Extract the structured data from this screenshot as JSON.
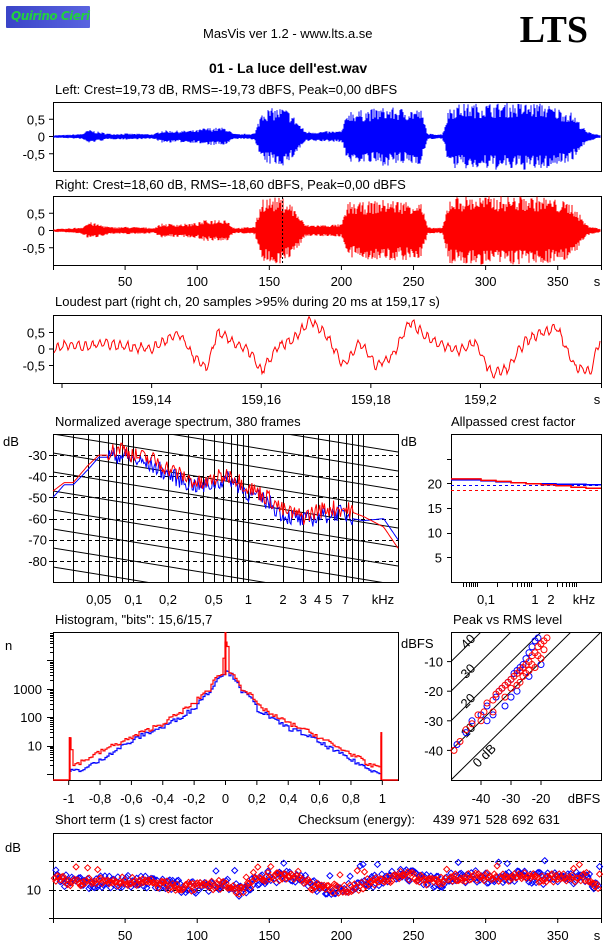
{
  "header": {
    "logo_text": "Quirino Cieri",
    "app_title": "MasVis ver 1.2 - www.lts.a.se",
    "brand": "LTS",
    "file_name": "01 - La luce dell'est.wav"
  },
  "colors": {
    "left": "#0000ff",
    "right": "#ff0000"
  },
  "chart_data": [
    {
      "id": "left-waveform",
      "type": "line",
      "title": "Left: Crest=19,73 dB, RMS=-19,73 dBFS, Peak=0,00 dBFS",
      "ylim": [
        -1,
        1
      ],
      "yticks": [
        "0,5",
        "0",
        "-0,5"
      ],
      "ytick_values": [
        0.5,
        0,
        -0.5
      ],
      "xlim": [
        0,
        380
      ],
      "envelope": {
        "t": [
          0,
          10,
          20,
          25,
          30,
          40,
          50,
          60,
          70,
          75,
          90,
          100,
          105,
          120,
          125,
          130,
          140,
          145,
          160,
          165,
          175,
          180,
          200,
          205,
          210,
          230,
          255,
          260,
          270,
          275,
          280,
          300,
          320,
          340,
          360,
          370,
          380
        ],
        "amp": [
          0.04,
          0.05,
          0.08,
          0.2,
          0.15,
          0.08,
          0.09,
          0.08,
          0.07,
          0.18,
          0.17,
          0.19,
          0.25,
          0.26,
          0.08,
          0.07,
          0.1,
          0.8,
          0.85,
          0.7,
          0.15,
          0.14,
          0.16,
          0.8,
          0.75,
          0.85,
          0.8,
          0.08,
          0.07,
          0.9,
          0.95,
          0.97,
          0.98,
          0.97,
          0.7,
          0.15,
          0.04
        ]
      },
      "color": "#0000ff"
    },
    {
      "id": "right-waveform",
      "type": "line",
      "title": "Right: Crest=18,60 dB, RMS=-18,60 dBFS, Peak=0,00 dBFS",
      "ylim": [
        -1,
        1
      ],
      "yticks": [
        "0,5",
        "0",
        "-0,5"
      ],
      "ytick_values": [
        0.5,
        0,
        -0.5
      ],
      "xlim": [
        0,
        380
      ],
      "xticks": [
        "50",
        "100",
        "150",
        "200",
        "250",
        "300",
        "350"
      ],
      "xtick_values": [
        50,
        100,
        150,
        200,
        250,
        300,
        350
      ],
      "xunit": "s",
      "marker_time": 159.17,
      "envelope": {
        "t": [
          0,
          10,
          20,
          25,
          30,
          40,
          50,
          60,
          70,
          75,
          90,
          100,
          105,
          120,
          125,
          130,
          140,
          145,
          160,
          165,
          175,
          180,
          200,
          205,
          210,
          230,
          255,
          260,
          270,
          275,
          280,
          300,
          320,
          340,
          360,
          370,
          380
        ],
        "amp": [
          0.04,
          0.06,
          0.1,
          0.25,
          0.2,
          0.1,
          0.11,
          0.1,
          0.08,
          0.2,
          0.19,
          0.22,
          0.3,
          0.35,
          0.09,
          0.08,
          0.12,
          0.98,
          0.95,
          0.8,
          0.17,
          0.16,
          0.18,
          0.85,
          0.8,
          0.9,
          0.85,
          0.09,
          0.08,
          0.98,
          1.0,
          1.0,
          1.0,
          0.99,
          0.8,
          0.17,
          0.04
        ]
      },
      "color": "#ff0000"
    },
    {
      "id": "loudest-part",
      "type": "line",
      "title": "Loudest part (right ch, 20 samples >95% during 20 ms at 159,17 s)",
      "xlim": [
        159.122,
        159.222
      ],
      "ylim": [
        -1,
        1
      ],
      "xticks": [
        "159,14",
        "159,16",
        "159,18",
        "159,2"
      ],
      "xtick_values": [
        159.14,
        159.16,
        159.18,
        159.2
      ],
      "xunit": "s",
      "yticks": [
        "0,5",
        "0",
        "-0,5"
      ],
      "ytick_values": [
        0.5,
        0,
        -0.5
      ],
      "x": [
        159.122,
        159.125,
        159.128,
        159.131,
        159.134,
        159.137,
        159.14,
        159.143,
        159.145,
        159.148,
        159.15,
        159.152,
        159.155,
        159.158,
        159.16,
        159.163,
        159.166,
        159.169,
        159.172,
        159.175,
        159.178,
        159.181,
        159.184,
        159.187,
        159.19,
        159.193,
        159.196,
        159.199,
        159.202,
        159.205,
        159.208,
        159.211,
        159.214,
        159.217,
        159.22,
        159.222
      ],
      "y": [
        0.0,
        0.15,
        0.05,
        0.2,
        0.1,
        0.05,
        0.0,
        0.3,
        0.45,
        -0.3,
        -0.6,
        0.5,
        0.2,
        -0.1,
        -0.7,
        0.05,
        0.3,
        0.9,
        0.4,
        -0.5,
        0.2,
        -0.5,
        -0.2,
        0.85,
        0.4,
        0.1,
        -0.05,
        0.2,
        -0.75,
        -0.6,
        0.2,
        0.5,
        0.65,
        -0.5,
        -0.7,
        0.4
      ],
      "color": "#ff0000"
    },
    {
      "id": "spectrum",
      "type": "line",
      "title": "Normalized average spectrum, 380 frames",
      "ylabel": "dB",
      "ylim": [
        -90,
        -20
      ],
      "yticks": [
        "-30",
        "-40",
        "-50",
        "-60",
        "-70",
        "-80"
      ],
      "ytick_values": [
        -30,
        -40,
        -50,
        -60,
        -70,
        -80
      ],
      "xscale": "log",
      "xlim_khz": [
        0.02,
        20
      ],
      "xticks": [
        "0,05",
        "0,1",
        "0,2",
        "0,5",
        "1",
        "2",
        "3",
        "4",
        "5",
        "7",
        "kHz"
      ],
      "xtick_values": [
        0.05,
        0.1,
        0.2,
        0.5,
        1,
        2,
        3,
        4,
        5,
        7
      ],
      "series": [
        {
          "name": "Left",
          "color": "#0000ff",
          "x": [
            0.02,
            0.025,
            0.03,
            0.04,
            0.05,
            0.06,
            0.08,
            0.1,
            0.15,
            0.2,
            0.3,
            0.4,
            0.5,
            0.7,
            1,
            1.5,
            2,
            3,
            4,
            5,
            6,
            8,
            10,
            15,
            20
          ],
          "y": [
            -50,
            -44,
            -44,
            -37,
            -31,
            -31,
            -31,
            -33,
            -36,
            -40,
            -44,
            -46,
            -44,
            -42,
            -49,
            -53,
            -59,
            -62,
            -60,
            -59,
            -58,
            -60,
            -61,
            -60,
            -70
          ]
        },
        {
          "name": "Right",
          "color": "#ff0000",
          "x": [
            0.02,
            0.025,
            0.03,
            0.04,
            0.05,
            0.06,
            0.08,
            0.1,
            0.15,
            0.2,
            0.3,
            0.4,
            0.5,
            0.7,
            1,
            1.5,
            2,
            3,
            4,
            5,
            6,
            8,
            10,
            15,
            20
          ],
          "y": [
            -47,
            -43,
            -43,
            -35,
            -30,
            -30,
            -27,
            -31,
            -33,
            -37,
            -42,
            -45,
            -42,
            -40,
            -46,
            -51,
            -57,
            -60,
            -57,
            -56,
            -56,
            -57,
            -59,
            -64,
            -74
          ]
        }
      ]
    },
    {
      "id": "allpassed-crest",
      "type": "line",
      "title": "Allpassed crest factor",
      "ylabel": "dB",
      "ylim": [
        0,
        30
      ],
      "yticks": [
        "20",
        "15",
        "10",
        "5"
      ],
      "ytick_values": [
        20,
        15,
        10,
        5
      ],
      "xticks": [
        "0,1",
        "1",
        "2",
        "kHz"
      ],
      "series": [
        {
          "name": "Left",
          "color": "#0000ff",
          "y": [
            20.7,
            20.7,
            20.5,
            20.3,
            20.1,
            19.9,
            19.9,
            19.8,
            19.8,
            19.7
          ],
          "overall": 19.73
        },
        {
          "name": "Right",
          "color": "#ff0000",
          "y": [
            20.9,
            20.9,
            20.6,
            20.4,
            20.1,
            19.9,
            19.7,
            19.5,
            19.2,
            19.0
          ],
          "overall": 18.6
        }
      ]
    },
    {
      "id": "histogram",
      "type": "line",
      "title": "Histogram, \"bits\": 15,6/15,7",
      "ylabel": "n",
      "yscale": "log",
      "ylim": [
        1,
        100000
      ],
      "yticks": [
        "1000",
        "100",
        "10"
      ],
      "ytick_values": [
        1000,
        100,
        10
      ],
      "xlim": [
        -1.1,
        1.1
      ],
      "xticks": [
        "-1",
        "-0,8",
        "-0,6",
        "-0,4",
        "-0,2",
        "0",
        "0,2",
        "0,4",
        "0,6",
        "0,8",
        "1"
      ],
      "xtick_values": [
        -1,
        -0.8,
        -0.6,
        -0.4,
        -0.2,
        0,
        0.2,
        0.4,
        0.6,
        0.8,
        1
      ],
      "series": [
        {
          "name": "Left",
          "color": "#0000ff",
          "x": [
            -1,
            -0.98,
            -0.9,
            -0.8,
            -0.7,
            -0.6,
            -0.5,
            -0.4,
            -0.3,
            -0.2,
            -0.1,
            -0.02,
            0,
            0.02,
            0.1,
            0.2,
            0.3,
            0.4,
            0.5,
            0.6,
            0.7,
            0.8,
            0.9,
            0.98,
            1
          ],
          "y": [
            1.2,
            1.3,
            1.5,
            3,
            7,
            14,
            28,
            45,
            90,
            200,
            800,
            3500,
            4000,
            3500,
            800,
            180,
            80,
            40,
            25,
            12,
            6,
            3,
            1.5,
            1.2,
            1
          ]
        },
        {
          "name": "Right",
          "color": "#ff0000",
          "x": [
            -1,
            -0.98,
            -0.9,
            -0.8,
            -0.7,
            -0.6,
            -0.5,
            -0.4,
            -0.3,
            -0.2,
            -0.1,
            -0.02,
            0,
            0.02,
            0.1,
            0.2,
            0.3,
            0.4,
            0.5,
            0.6,
            0.7,
            0.8,
            0.9,
            0.98,
            1
          ],
          "y": [
            20,
            2,
            3,
            6,
            11,
            19,
            35,
            60,
            130,
            300,
            1000,
            4000,
            50000,
            4000,
            1000,
            250,
            110,
            60,
            35,
            18,
            9,
            5,
            2,
            2,
            30
          ]
        }
      ]
    },
    {
      "id": "peak-vs-rms",
      "type": "scatter",
      "title": "Peak vs RMS level",
      "ylabel": "dBFS",
      "xlabel": "dBFS",
      "xlim": [
        -50,
        0
      ],
      "ylim": [
        -50,
        0
      ],
      "xticks": [
        "-40",
        "-30",
        "-20",
        "dBFS"
      ],
      "xtick_values": [
        -40,
        -30,
        -20
      ],
      "yticks": [
        "-10",
        "-20",
        "-30",
        "-40"
      ],
      "ytick_values": [
        -10,
        -20,
        -30,
        -40
      ],
      "crest_lines": [
        "40",
        "30",
        "20",
        "10",
        "0 dB"
      ],
      "crest_values": [
        40,
        30,
        20,
        10,
        0
      ],
      "series": [
        {
          "name": "Left",
          "color": "#0000ff",
          "points": [
            [
              -48,
              -38
            ],
            [
              -45,
              -34
            ],
            [
              -43,
              -30
            ],
            [
              -40,
              -28
            ],
            [
              -38,
              -25
            ],
            [
              -36,
              -28
            ],
            [
              -35,
              -22
            ],
            [
              -33,
              -19
            ],
            [
              -31,
              -17
            ],
            [
              -30,
              -16
            ],
            [
              -29,
              -14
            ],
            [
              -28,
              -13
            ],
            [
              -27,
              -12
            ],
            [
              -26,
              -11
            ],
            [
              -25,
              -9
            ],
            [
              -24,
              -7
            ],
            [
              -23,
              -5
            ],
            [
              -22,
              -3
            ],
            [
              -21,
              -2
            ],
            [
              -20,
              -1
            ],
            [
              -38,
              -30
            ],
            [
              -32,
              -25
            ],
            [
              -28,
              -20
            ],
            [
              -24,
              -15
            ],
            [
              -20,
              -11
            ],
            [
              -34,
              -20
            ],
            [
              -30,
              -22
            ]
          ]
        },
        {
          "name": "Right",
          "color": "#ff0000",
          "points": [
            [
              -49,
              -40
            ],
            [
              -47,
              -37
            ],
            [
              -45,
              -33
            ],
            [
              -43,
              -31
            ],
            [
              -41,
              -28
            ],
            [
              -39,
              -27
            ],
            [
              -38,
              -24
            ],
            [
              -36,
              -23
            ],
            [
              -35,
              -21
            ],
            [
              -34,
              -20
            ],
            [
              -33,
              -19
            ],
            [
              -32,
              -18
            ],
            [
              -31,
              -17
            ],
            [
              -30,
              -16
            ],
            [
              -29,
              -15
            ],
            [
              -28,
              -14
            ],
            [
              -27,
              -13
            ],
            [
              -26,
              -12
            ],
            [
              -25,
              -11
            ],
            [
              -24,
              -10
            ],
            [
              -23,
              -8
            ],
            [
              -22,
              -7
            ],
            [
              -21,
              -5
            ],
            [
              -20,
              -4
            ],
            [
              -19,
              -3
            ],
            [
              -18,
              -2
            ],
            [
              -17,
              -1
            ],
            [
              -16,
              -0.5
            ],
            [
              -15,
              -0.3
            ],
            [
              -40,
              -30
            ],
            [
              -36,
              -27
            ],
            [
              -32,
              -22
            ],
            [
              -28,
              -18
            ],
            [
              -26,
              -15
            ],
            [
              -24,
              -13
            ],
            [
              -22,
              -12
            ],
            [
              -20,
              -9
            ],
            [
              -30,
              -19
            ],
            [
              -27,
              -17
            ],
            [
              -25,
              -14
            ],
            [
              -23,
              -11
            ],
            [
              -21,
              -8
            ],
            [
              -19,
              -6
            ]
          ]
        }
      ]
    },
    {
      "id": "short-term-crest",
      "type": "scatter",
      "title": "Short term (1 s) crest factor",
      "ylabel": "dB",
      "ylim": [
        5,
        20
      ],
      "yticks": [
        "10"
      ],
      "ytick_values": [
        10
      ],
      "ref_lines": [
        10,
        15
      ],
      "xlim": [
        0,
        380
      ],
      "xticks": [
        "50",
        "100",
        "150",
        "200",
        "250",
        "300",
        "350"
      ],
      "xtick_values": [
        50,
        100,
        150,
        200,
        250,
        300,
        350
      ],
      "xunit": "s",
      "trend": {
        "t": [
          0,
          20,
          40,
          60,
          80,
          100,
          120,
          130,
          140,
          150,
          160,
          170,
          180,
          190,
          200,
          210,
          220,
          230,
          240,
          250,
          260,
          270,
          280,
          300,
          320,
          340,
          360,
          370,
          378,
          380
        ],
        "db": [
          11.8,
          11.2,
          11.4,
          11.5,
          10.7,
          10.4,
          11,
          9.6,
          11.5,
          12.4,
          12.2,
          12.5,
          10.5,
          10.3,
          10.1,
          10.5,
          11.3,
          11.8,
          12.5,
          12.3,
          11.5,
          11.5,
          12.3,
          12.2,
          12.3,
          12.0,
          12.0,
          12.3,
          10.5,
          16.0
        ]
      }
    }
  ],
  "checksum": {
    "label": "Checksum (energy):",
    "value": "439 971 528 692 631"
  }
}
